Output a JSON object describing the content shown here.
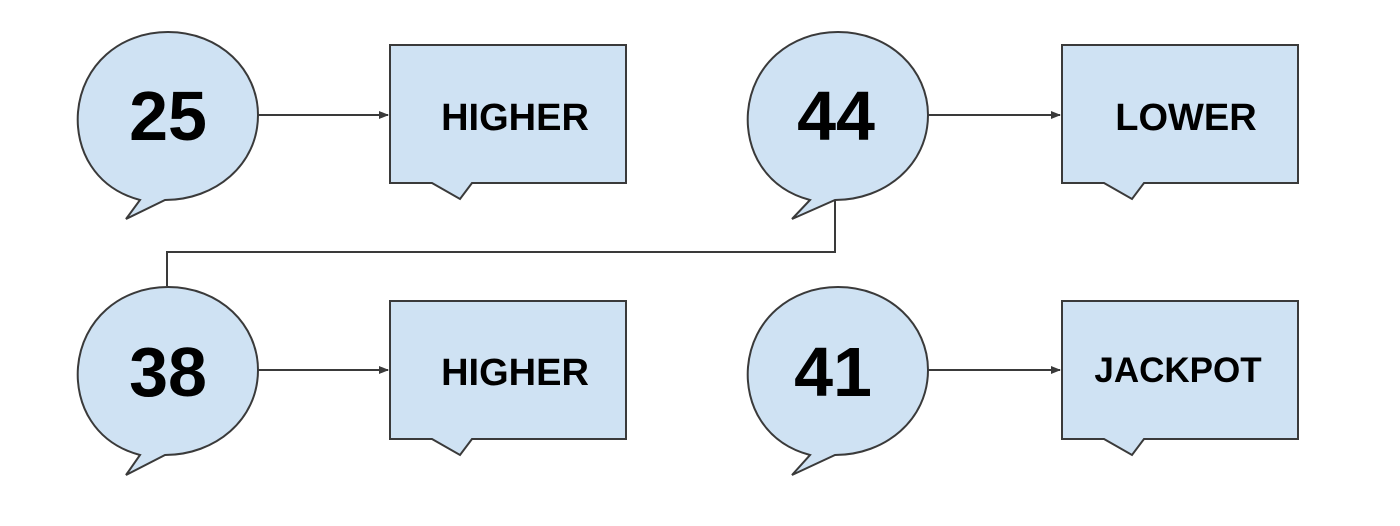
{
  "colors": {
    "fill": "#cfe2f3",
    "stroke": "#3a3a3a",
    "text": "#000000"
  },
  "rounds": [
    {
      "guess": "25",
      "reply": "HIGHER"
    },
    {
      "guess": "44",
      "reply": "LOWER"
    },
    {
      "guess": "38",
      "reply": "HIGHER"
    },
    {
      "guess": "41",
      "reply": "JACKPOT"
    }
  ]
}
